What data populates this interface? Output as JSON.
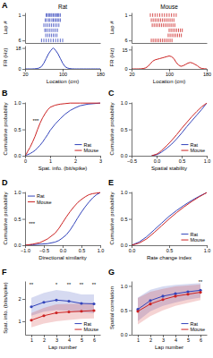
{
  "chart_data": [
    {
      "type": "raster",
      "title": "Rat",
      "y_label": "Lap #",
      "color": "#3344bb",
      "x": [
        65,
        67,
        70,
        72,
        75,
        77,
        80,
        83,
        85,
        88,
        90,
        92,
        95,
        63,
        66,
        70,
        73,
        77,
        80,
        83,
        86,
        89,
        92,
        95,
        60,
        64,
        68,
        72,
        76,
        80,
        84,
        88,
        92,
        62,
        65,
        69,
        73,
        77,
        81,
        85,
        89,
        64,
        68,
        72,
        76,
        80,
        84,
        88,
        55,
        60,
        65,
        70,
        75,
        80,
        85,
        90,
        95,
        100
      ],
      "values": [
        1,
        1,
        1,
        1,
        1,
        1,
        1,
        1,
        1,
        1,
        1,
        1,
        1,
        2,
        2,
        2,
        2,
        2,
        2,
        2,
        2,
        2,
        2,
        2,
        3,
        3,
        3,
        3,
        3,
        3,
        3,
        3,
        3,
        4,
        4,
        4,
        4,
        4,
        4,
        4,
        4,
        5,
        5,
        5,
        5,
        5,
        5,
        5,
        6,
        6,
        6,
        6,
        6,
        6,
        6,
        6,
        6,
        6
      ],
      "xlim": [
        20,
        180
      ],
      "ylim": [
        6.5,
        0.5
      ],
      "yticks": [
        1,
        6
      ],
      "tick_labels": "y",
      "annotations": [
        {
          "text": "A"
        }
      ]
    },
    {
      "type": "line",
      "x_label": "Location (cm)",
      "y_label": "FR (Hz)",
      "color": "#3344bb",
      "x": [
        20,
        25,
        30,
        35,
        40,
        45,
        50,
        55,
        60,
        65,
        70,
        75,
        80,
        85,
        90,
        95,
        100,
        105,
        110,
        115,
        120,
        125,
        130,
        135,
        140,
        145,
        150,
        155,
        160,
        165,
        170,
        175,
        180
      ],
      "values": [
        0,
        0,
        0,
        0,
        0.1,
        0.3,
        0.8,
        2,
        5,
        9,
        13,
        16,
        18,
        16,
        13,
        9,
        5,
        2,
        0.8,
        0.3,
        0.1,
        0,
        0,
        0,
        0,
        0,
        0,
        0,
        0,
        0,
        0,
        0,
        0
      ],
      "xlim": [
        20,
        180
      ],
      "ylim": [
        0,
        20
      ],
      "xticks": [
        20,
        100,
        180
      ],
      "yticks": [
        0,
        18
      ]
    },
    {
      "type": "raster",
      "title": "Mouse",
      "y_label": "Lap #",
      "color": "#cc2222",
      "x": [
        60,
        65,
        70,
        75,
        80,
        85,
        90,
        95,
        100,
        105,
        110,
        115,
        62,
        66,
        70,
        74,
        78,
        82,
        86,
        90,
        94,
        98,
        102,
        106,
        110,
        64,
        68,
        72,
        76,
        80,
        84,
        88,
        92,
        96,
        100,
        104,
        108,
        112,
        100,
        104,
        108,
        112,
        116,
        120,
        124,
        128,
        98,
        102,
        106,
        110,
        114,
        118,
        122,
        126,
        62,
        66,
        70,
        74,
        78,
        82,
        86,
        90,
        94,
        98,
        102,
        106
      ],
      "values": [
        1,
        1,
        1,
        1,
        1,
        1,
        1,
        1,
        1,
        1,
        1,
        1,
        2,
        2,
        2,
        2,
        2,
        2,
        2,
        2,
        2,
        2,
        2,
        2,
        2,
        3,
        3,
        3,
        3,
        3,
        3,
        3,
        3,
        3,
        3,
        3,
        3,
        3,
        4,
        4,
        4,
        4,
        4,
        4,
        4,
        4,
        5,
        5,
        5,
        5,
        5,
        5,
        5,
        5,
        6,
        6,
        6,
        6,
        6,
        6,
        6,
        6,
        6,
        6,
        6,
        6
      ],
      "xlim": [
        20,
        180
      ],
      "ylim": [
        6.5,
        0.5
      ],
      "yticks": [
        1,
        6
      ],
      "tick_labels": "y"
    },
    {
      "type": "line",
      "x_label": "Location (cm)",
      "y_label": "FR (Hz)",
      "color": "#cc2222",
      "x": [
        20,
        25,
        30,
        35,
        40,
        45,
        50,
        55,
        60,
        65,
        70,
        75,
        80,
        85,
        90,
        95,
        100,
        105,
        110,
        115,
        120,
        125,
        130,
        135,
        140,
        145,
        150,
        155,
        160,
        165,
        170,
        175,
        180
      ],
      "values": [
        0,
        0,
        0,
        0,
        0.1,
        0.3,
        0.8,
        2,
        4,
        6,
        7,
        7.5,
        8,
        8.5,
        9,
        9.5,
        10,
        9.5,
        8,
        5,
        3,
        2,
        2.5,
        3.5,
        4.5,
        5,
        4.5,
        3.5,
        2.5,
        1,
        0.3,
        0.1,
        0
      ],
      "xlim": [
        20,
        180
      ],
      "ylim": [
        0,
        18
      ],
      "xticks": [
        20,
        100,
        180
      ],
      "yticks": [
        0,
        15
      ]
    },
    {
      "type": "line",
      "x_label": "Spat. info. (bit/spike)",
      "y_label": "Cumulative probability",
      "x": [
        0,
        0.05,
        0.1,
        0.2,
        0.3,
        0.4,
        0.5,
        0.6,
        0.7,
        0.8,
        0.9,
        1.0,
        1.2,
        1.4,
        1.6,
        1.8,
        2.0,
        2.2,
        2.5,
        3.0
      ],
      "series": [
        {
          "name": "Rat",
          "color": "#3344bb",
          "values": [
            0,
            0.01,
            0.02,
            0.04,
            0.07,
            0.1,
            0.15,
            0.2,
            0.26,
            0.33,
            0.4,
            0.48,
            0.6,
            0.7,
            0.79,
            0.86,
            0.91,
            0.95,
            0.98,
            1.0
          ]
        },
        {
          "name": "Mouse",
          "color": "#cc2222",
          "values": [
            0,
            0.03,
            0.08,
            0.16,
            0.26,
            0.37,
            0.5,
            0.62,
            0.72,
            0.8,
            0.87,
            0.92,
            0.96,
            0.98,
            0.99,
            1.0,
            1.0,
            1.0,
            1.0,
            1.0
          ]
        }
      ],
      "xlim": [
        0,
        3
      ],
      "ylim": [
        0,
        1.02
      ],
      "xticks": [
        0,
        1,
        2,
        3
      ],
      "yticks": [
        {
          "value": 0,
          "label": "0.0"
        },
        0.5,
        {
          "value": 1,
          "label": "1.0"
        }
      ],
      "legend": "lower right",
      "annotations": [
        {
          "text": "B"
        },
        {
          "text": "***"
        }
      ]
    },
    {
      "type": "line",
      "x_label": "Spatial stability",
      "y_label": "Cumulative probability",
      "x": [
        -0.1,
        0,
        0.05,
        0.1,
        0.2,
        0.3,
        0.4,
        0.5,
        0.6,
        0.7,
        0.8,
        0.9,
        1.0
      ],
      "series": [
        {
          "name": "Rat",
          "color": "#3344bb",
          "values": [
            0,
            0.02,
            0.04,
            0.07,
            0.14,
            0.22,
            0.32,
            0.43,
            0.55,
            0.66,
            0.77,
            0.88,
            1.0
          ]
        },
        {
          "name": "Mouse",
          "color": "#cc2222",
          "values": [
            0,
            0.03,
            0.06,
            0.1,
            0.19,
            0.29,
            0.4,
            0.52,
            0.63,
            0.74,
            0.84,
            0.93,
            1.0
          ]
        }
      ],
      "xlim": [
        -0.5,
        1
      ],
      "ylim": [
        0,
        1.02
      ],
      "xticks": [
        {
          "value": -0.5,
          "label": "−0.5"
        },
        {
          "value": 0,
          "label": "0.0"
        },
        0.5,
        {
          "value": 1,
          "label": "1.0"
        }
      ],
      "yticks": [
        {
          "value": 0,
          "label": "0.0"
        },
        0.5,
        {
          "value": 1,
          "label": "1.0"
        }
      ],
      "legend": "lower right",
      "annotations": [
        {
          "text": "C"
        }
      ]
    },
    {
      "type": "line",
      "x_label": "Directional similarity",
      "y_label": "Cumulative probability",
      "x": [
        -1,
        -0.8,
        -0.6,
        -0.4,
        -0.2,
        -0.1,
        0,
        0.1,
        0.2,
        0.3,
        0.4,
        0.5,
        0.6,
        0.7,
        0.8,
        0.9,
        1.0
      ],
      "series": [
        {
          "name": "Rat",
          "color": "#3344bb",
          "values": [
            0,
            0.01,
            0.02,
            0.03,
            0.06,
            0.09,
            0.14,
            0.2,
            0.29,
            0.4,
            0.52,
            0.63,
            0.73,
            0.82,
            0.9,
            0.96,
            1.0
          ]
        },
        {
          "name": "Mouse",
          "color": "#cc2222",
          "values": [
            0,
            0.02,
            0.05,
            0.12,
            0.23,
            0.32,
            0.43,
            0.54,
            0.64,
            0.73,
            0.81,
            0.87,
            0.92,
            0.96,
            0.98,
            0.99,
            1.0
          ]
        }
      ],
      "xlim": [
        -1,
        1
      ],
      "ylim": [
        0,
        1.02
      ],
      "xticks": [
        {
          "value": -1,
          "label": "−1.0"
        },
        {
          "value": -0.5,
          "label": "−0.5"
        },
        {
          "value": 0,
          "label": "0.0"
        },
        0.5,
        {
          "value": 1,
          "label": "1.0"
        }
      ],
      "yticks": [
        {
          "value": 0,
          "label": "0.0"
        },
        0.5,
        {
          "value": 1,
          "label": "1.0"
        }
      ],
      "legend": "upper left",
      "annotations": [
        {
          "text": "D"
        },
        {
          "text": "***"
        }
      ]
    },
    {
      "type": "line",
      "x_label": "Rate change index",
      "y_label": "Cumulative probability",
      "x": [
        0,
        0.1,
        0.2,
        0.3,
        0.4,
        0.5,
        0.6,
        0.7,
        0.8,
        0.9,
        1.0
      ],
      "series": [
        {
          "name": "Rat",
          "color": "#3344bb",
          "values": [
            0,
            0.06,
            0.16,
            0.29,
            0.42,
            0.55,
            0.66,
            0.76,
            0.85,
            0.93,
            1.0
          ]
        },
        {
          "name": "Mouse",
          "color": "#cc2222",
          "values": [
            0,
            0.04,
            0.12,
            0.24,
            0.37,
            0.5,
            0.62,
            0.73,
            0.83,
            0.92,
            1.0
          ]
        }
      ],
      "xlim": [
        0,
        1
      ],
      "ylim": [
        0,
        1.02
      ],
      "xticks": [
        {
          "value": 0,
          "label": "0.0"
        },
        0.5,
        {
          "value": 1,
          "label": "1.0"
        }
      ],
      "yticks": [
        {
          "value": 0,
          "label": "0.0"
        },
        0.5,
        {
          "value": 1,
          "label": "1.0"
        }
      ],
      "legend": "lower right",
      "annotations": [
        {
          "text": "E"
        }
      ]
    },
    {
      "type": "line",
      "marker": "circle",
      "x_label": "Lap number",
      "y_label": "Spat. info. (bits/spike)",
      "x": [
        1,
        2,
        3,
        4,
        5,
        6
      ],
      "series": [
        {
          "name": "Rat",
          "color": "#3344bb",
          "values": [
            1.65,
            1.85,
            1.95,
            1.9,
            1.8,
            1.78
          ],
          "error": [
            0.4,
            0.42,
            0.45,
            0.43,
            0.4,
            0.42
          ]
        },
        {
          "name": "Mouse",
          "color": "#cc2222",
          "values": [
            1.05,
            1.25,
            1.38,
            1.42,
            1.45,
            1.48
          ],
          "error": [
            0.32,
            0.35,
            0.38,
            0.36,
            0.34,
            0.35
          ]
        }
      ],
      "xlim": [
        0.5,
        6.5
      ],
      "ylim": [
        0.4,
        2.8
      ],
      "xticks": [
        1,
        2,
        3,
        4,
        5,
        6
      ],
      "yticks": [
        1,
        2
      ],
      "legend": "lower right",
      "annotations": [
        {
          "text": "F"
        },
        {
          "text": "**",
          "x": 1,
          "y": 2.55
        },
        {
          "text": "*",
          "x": 3,
          "y": 2.55
        },
        {
          "text": "**",
          "x": 4,
          "y": 2.55
        },
        {
          "text": "**",
          "x": 5,
          "y": 2.55
        },
        {
          "text": "**",
          "x": 6,
          "y": 2.55
        }
      ]
    },
    {
      "type": "line",
      "marker": "circle",
      "x_label": "Lap number",
      "y_label": "Spatial correlation",
      "x": [
        1,
        2,
        3,
        4,
        5,
        6
      ],
      "series": [
        {
          "name": "Rat",
          "color": "#3344bb",
          "values": [
            0.52,
            0.7,
            0.79,
            0.84,
            0.88,
            0.91
          ],
          "error": [
            0.24,
            0.22,
            0.2,
            0.18,
            0.16,
            0.15
          ]
        },
        {
          "name": "Mouse",
          "color": "#cc2222",
          "values": [
            0.48,
            0.63,
            0.72,
            0.79,
            0.83,
            0.87
          ],
          "error": [
            0.27,
            0.25,
            0.22,
            0.2,
            0.18,
            0.16
          ]
        }
      ],
      "xlim": [
        0.5,
        6.5
      ],
      "ylim": [
        0,
        1.1
      ],
      "xticks": [
        1,
        2,
        3,
        4,
        5,
        6
      ],
      "yticks": [
        {
          "value": 0,
          "label": "0.0"
        },
        0.5,
        {
          "value": 1,
          "label": "1.0"
        }
      ],
      "legend": "lower right",
      "annotations": [
        {
          "text": "G"
        },
        {
          "text": "**",
          "x": 6,
          "y": 1.05
        }
      ]
    }
  ]
}
